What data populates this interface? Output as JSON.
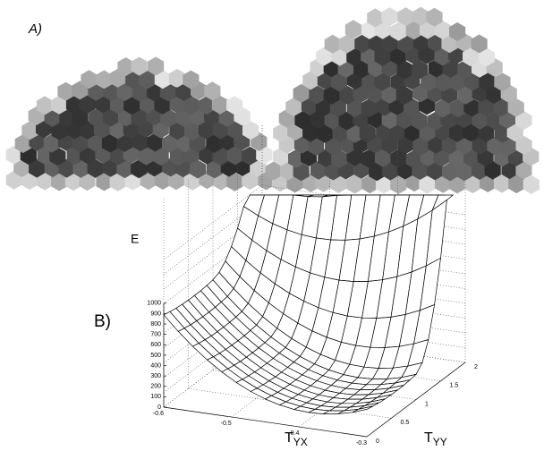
{
  "panel_a": {
    "label": "A)"
  },
  "panel_b": {
    "label": "B)",
    "z_label": "E",
    "x_label": {
      "main": "T",
      "sub": "YX"
    },
    "y_label": {
      "main": "T",
      "sub": "YY"
    },
    "z_ticks": [
      "0",
      "100",
      "200",
      "300",
      "400",
      "500",
      "600",
      "700",
      "800",
      "900",
      "1000"
    ],
    "x_ticks": [
      "-0.6",
      "-0.5",
      "-0.4",
      "-0.3"
    ],
    "y_ticks": [
      "0",
      "0.5",
      "1",
      "1.5",
      "2"
    ]
  }
}
